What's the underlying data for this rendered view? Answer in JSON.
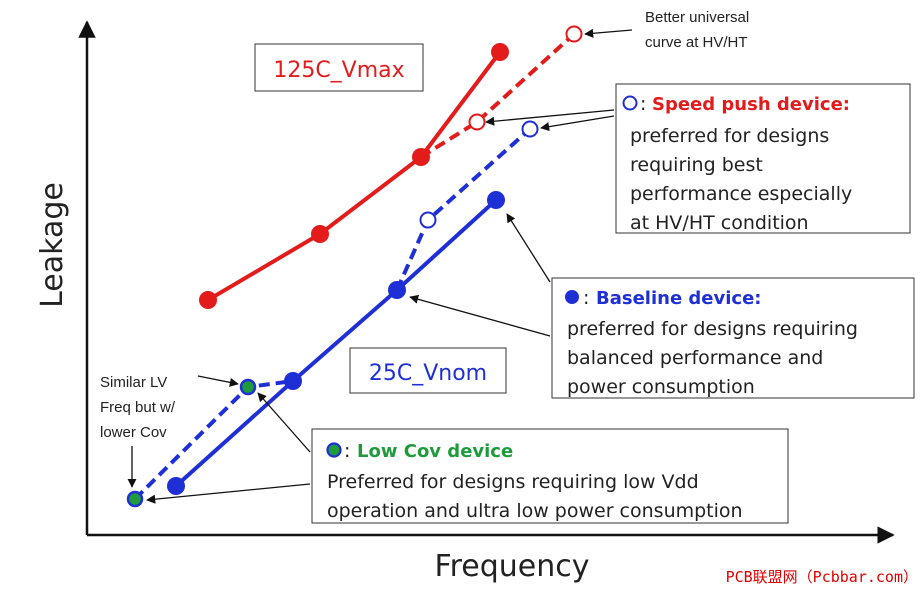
{
  "chart_data": {
    "type": "line",
    "xlabel": "Frequency",
    "ylabel": "Leakage",
    "colors": {
      "red": "#e31b1b",
      "blue": "#1e2fd6",
      "green": "#1f9b3b"
    },
    "series": [
      {
        "name": "125C_Vmax",
        "style": "solid",
        "color": "red",
        "marker": "filled",
        "points": [
          [
            208,
            300
          ],
          [
            320,
            234
          ],
          [
            421,
            157
          ],
          [
            500,
            52
          ]
        ]
      },
      {
        "name": "Speed push device (125C)",
        "style": "dashed",
        "color": "red",
        "marker": "open",
        "points": [
          [
            421,
            157
          ],
          [
            477,
            122
          ],
          [
            574,
            34
          ]
        ]
      },
      {
        "name": "25C_Vnom",
        "style": "solid",
        "color": "blue",
        "marker": "filled",
        "points": [
          [
            176,
            486
          ],
          [
            293,
            381
          ],
          [
            397,
            290
          ],
          [
            496,
            200
          ]
        ]
      },
      {
        "name": "Speed push device (25C)",
        "style": "dashed",
        "color": "blue",
        "marker": "open",
        "points": [
          [
            397,
            290
          ],
          [
            428,
            220
          ],
          [
            530,
            129
          ]
        ]
      },
      {
        "name": "Low Cov device",
        "style": "dashed",
        "color": "blue",
        "marker": "green",
        "points": [
          [
            135,
            499
          ],
          [
            248,
            387
          ],
          [
            293,
            381
          ]
        ]
      }
    ],
    "annotations": {
      "label_125c": "125C_Vmax",
      "label_25c": "25C_Vnom",
      "better_curve": [
        "Better universal",
        "curve at HV/HT"
      ],
      "similar_lv": [
        "Similar LV",
        "Freq but w/",
        "lower Cov"
      ]
    },
    "legend_boxes": {
      "speed_push": {
        "marker": "open",
        "title": "Speed push device:",
        "lines": [
          "preferred for designs",
          "requiring best",
          "performance especially",
          "at HV/HT condition"
        ]
      },
      "baseline": {
        "marker": "filled",
        "title": "Baseline device:",
        "lines": [
          "preferred for designs requiring",
          "balanced performance and",
          "power consumption"
        ]
      },
      "low_cov": {
        "marker": "green",
        "title": "Low Cov device",
        "lines": [
          "Preferred for designs requiring low Vdd",
          "operation and ultra low power consumption"
        ]
      }
    },
    "legend_colon": ":",
    "watermark": "PCB联盟网（Pcbbar.com）"
  }
}
